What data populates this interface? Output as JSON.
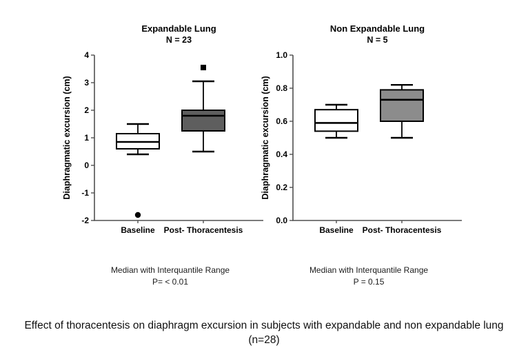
{
  "figure": {
    "caption_line1": "Effect of thoracentesis on diaphragm excursion in subjects with expandable and non expandable lung",
    "caption_line2": "(n=28)"
  },
  "colors": {
    "axis": "#4f4f4f",
    "text": "#000000",
    "box_stroke": "#000000",
    "baseline_fill": "#ffffff",
    "expandable_post_fill": "#5e5e5e",
    "nonexpandable_post_fill": "#8c8c8c"
  },
  "chart_data": [
    {
      "type": "box",
      "title": "Expandable Lung",
      "subtitle": "N = 23",
      "ylabel": "Diaphragmatic excursion (cm)",
      "xlabel": "",
      "ylim": [
        -2,
        4
      ],
      "grid": false,
      "yticks": [
        {
          "value": 4,
          "label": "4"
        },
        {
          "value": 3,
          "label": "3"
        },
        {
          "value": 2,
          "label": "2"
        },
        {
          "value": 1,
          "label": "1"
        },
        {
          "value": 0,
          "label": "0"
        },
        {
          "value": -1,
          "label": "-1"
        },
        {
          "value": -2,
          "label": "-2"
        }
      ],
      "categories": [
        "Baseline",
        "Post- Thoracentesis"
      ],
      "boxes": [
        {
          "category": "Baseline",
          "whisker_low": 0.4,
          "q1": 0.6,
          "median": 0.85,
          "q3": 1.15,
          "whisker_high": 1.5,
          "fill": "#ffffff",
          "outliers": [
            {
              "value": -1.8,
              "marker": "circle"
            }
          ]
        },
        {
          "category": "Post- Thoracentesis",
          "whisker_low": 0.5,
          "q1": 1.25,
          "median": 1.8,
          "q3": 2.0,
          "whisker_high": 3.05,
          "fill": "#5e5e5e",
          "outliers": [
            {
              "value": 3.55,
              "marker": "square"
            }
          ]
        }
      ],
      "note_line1": "Median with Interquantile Range",
      "note_line2": "P= < 0.01"
    },
    {
      "type": "box",
      "title": "Non Expandable Lung",
      "subtitle": "N = 5",
      "ylabel": "Diaphragmatic excursion (cm)",
      "xlabel": "",
      "ylim": [
        0,
        1
      ],
      "grid": false,
      "yticks": [
        {
          "value": 1.0,
          "label": "1.0"
        },
        {
          "value": 0.8,
          "label": "0.8"
        },
        {
          "value": 0.6,
          "label": "0.6"
        },
        {
          "value": 0.4,
          "label": "0.4"
        },
        {
          "value": 0.2,
          "label": "0.2"
        },
        {
          "value": 0.0,
          "label": "0.0"
        }
      ],
      "categories": [
        "Baseline",
        "Post- Thoracentesis"
      ],
      "boxes": [
        {
          "category": "Baseline",
          "whisker_low": 0.5,
          "q1": 0.54,
          "median": 0.59,
          "q3": 0.67,
          "whisker_high": 0.7,
          "fill": "#ffffff",
          "outliers": []
        },
        {
          "category": "Post- Thoracentesis",
          "whisker_low": 0.5,
          "q1": 0.6,
          "median": 0.73,
          "q3": 0.79,
          "whisker_high": 0.82,
          "fill": "#8c8c8c",
          "outliers": []
        }
      ],
      "note_line1": "Median with Interquantile Range",
      "note_line2": "P = 0.15"
    }
  ]
}
